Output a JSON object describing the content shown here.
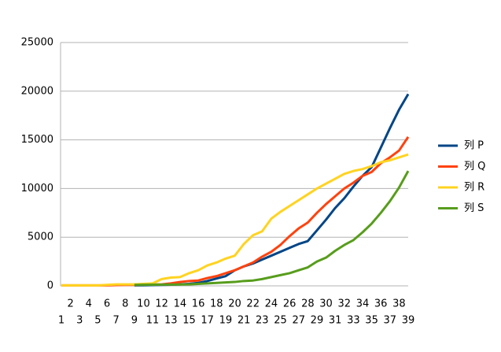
{
  "chart_data": {
    "type": "line",
    "categories": [
      1,
      2,
      3,
      4,
      5,
      6,
      7,
      8,
      9,
      10,
      11,
      12,
      13,
      14,
      15,
      16,
      17,
      18,
      19,
      20,
      21,
      22,
      23,
      24,
      25,
      26,
      27,
      28,
      29,
      30,
      31,
      32,
      33,
      34,
      35,
      36,
      37,
      38,
      39
    ],
    "series": [
      {
        "name": "列 P",
        "color": "#004586",
        "values": [
          null,
          null,
          null,
          null,
          null,
          null,
          null,
          null,
          50,
          60,
          80,
          100,
          120,
          150,
          200,
          300,
          500,
          750,
          1000,
          1600,
          2000,
          2300,
          2700,
          3100,
          3500,
          3900,
          4300,
          4600,
          5700,
          6800,
          8000,
          9000,
          10200,
          11300,
          12200,
          14200,
          16200,
          18100,
          19700
        ]
      },
      {
        "name": "列 Q",
        "color": "#ff420e",
        "values": [
          50,
          50,
          50,
          50,
          50,
          50,
          80,
          100,
          100,
          120,
          130,
          150,
          250,
          400,
          500,
          550,
          800,
          1000,
          1300,
          1600,
          2000,
          2400,
          3000,
          3500,
          4200,
          5100,
          5900,
          6500,
          7500,
          8400,
          9200,
          10000,
          10600,
          11300,
          11700,
          12600,
          13200,
          13900,
          15300
        ]
      },
      {
        "name": "列 R",
        "color": "#ffd320",
        "values": [
          50,
          50,
          50,
          50,
          50,
          100,
          150,
          150,
          150,
          200,
          250,
          700,
          850,
          900,
          1300,
          1600,
          2100,
          2400,
          2800,
          3100,
          4300,
          5200,
          5600,
          6900,
          7600,
          8200,
          8800,
          9400,
          10000,
          10500,
          11000,
          11500,
          11800,
          12000,
          12300,
          12700,
          12900,
          13200,
          13500
        ]
      },
      {
        "name": "列 S",
        "color": "#579d1c",
        "values": [
          null,
          null,
          null,
          null,
          null,
          null,
          null,
          null,
          100,
          110,
          120,
          130,
          130,
          140,
          150,
          200,
          250,
          300,
          350,
          400,
          500,
          550,
          700,
          900,
          1100,
          1300,
          1600,
          1900,
          2500,
          2900,
          3600,
          4200,
          4700,
          5500,
          6400,
          7500,
          8700,
          10100,
          11800
        ]
      }
    ],
    "ylim": [
      0,
      25000
    ],
    "yticks": [
      0,
      5000,
      10000,
      15000,
      20000,
      25000
    ],
    "grid": true
  }
}
